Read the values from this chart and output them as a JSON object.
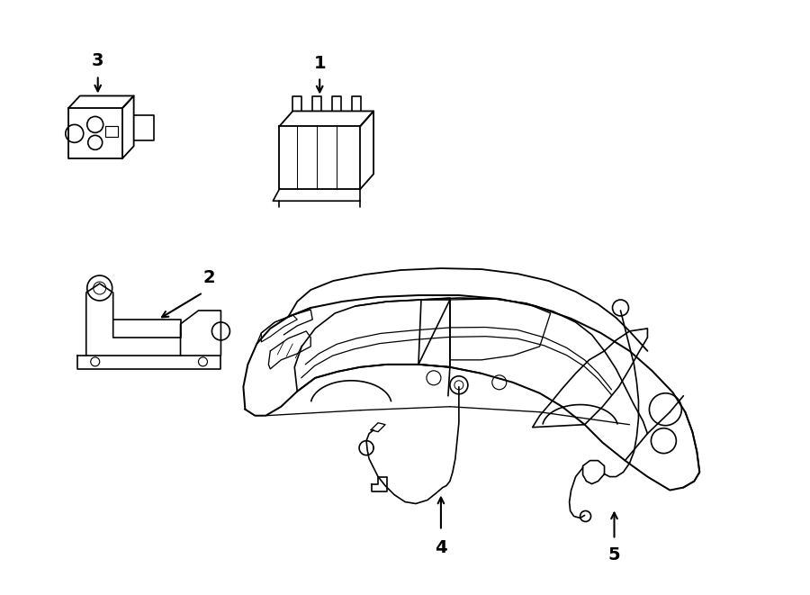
{
  "title": "",
  "background_color": "#ffffff",
  "line_color": "#000000",
  "lw": 1.2,
  "figsize": [
    9.0,
    6.61
  ],
  "dpi": 100
}
